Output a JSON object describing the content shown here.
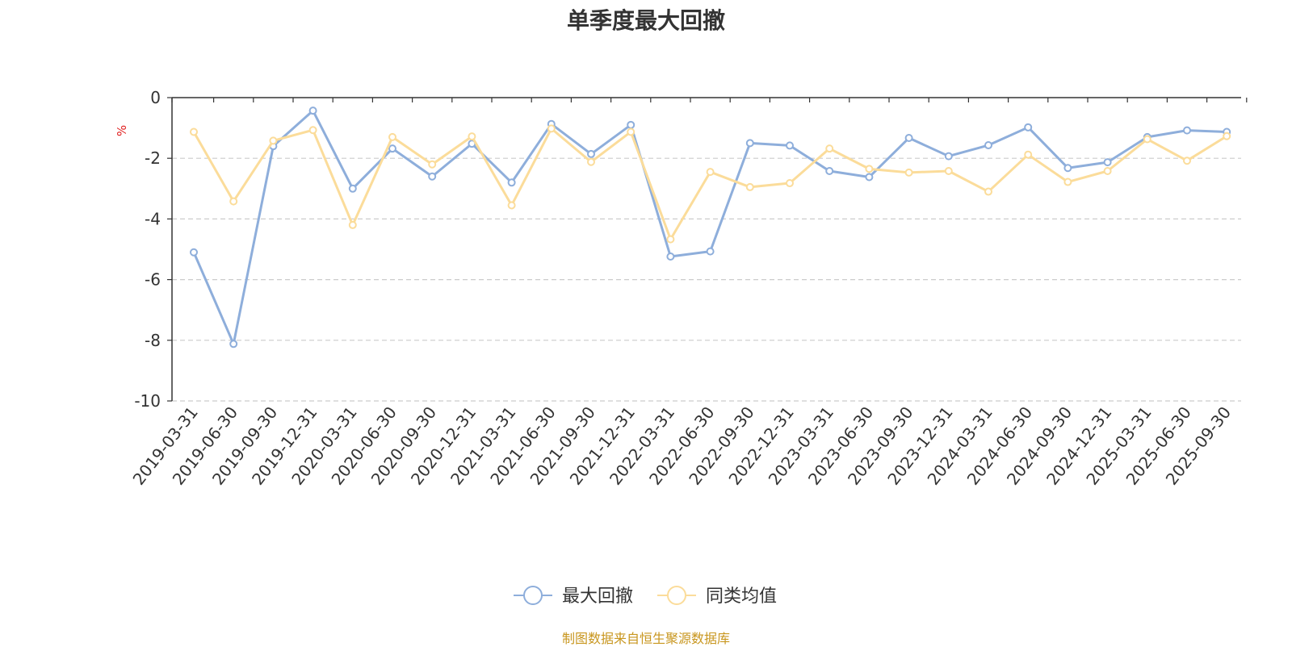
{
  "title": "单季度最大回撤",
  "source_note": "制图数据来自恒生聚源数据库",
  "chart_data": {
    "type": "line",
    "title": "单季度最大回撤",
    "ylabel": "%",
    "xlabel": "",
    "ylim": [
      -10,
      0
    ],
    "yticks": [
      0,
      -2,
      -4,
      -6,
      -8,
      -10
    ],
    "grid": true,
    "legend_position": "bottom",
    "categories": [
      "2019-03-31",
      "2019-06-30",
      "2019-09-30",
      "2019-12-31",
      "2020-03-31",
      "2020-06-30",
      "2020-09-30",
      "2020-12-31",
      "2021-03-31",
      "2021-06-30",
      "2021-09-30",
      "2021-12-31",
      "2022-03-31",
      "2022-06-30",
      "2022-09-30",
      "2022-12-31",
      "2023-03-31",
      "2023-06-30",
      "2023-09-30",
      "2023-12-31",
      "2024-03-31",
      "2024-06-30",
      "2024-09-30",
      "2024-12-31",
      "2025-03-31",
      "2025-06-30",
      "2025-09-30"
    ],
    "series": [
      {
        "name": "最大回撤",
        "color": "#8eaedb",
        "values": [
          -5.1,
          -8.12,
          -1.6,
          -0.43,
          -3.0,
          -1.68,
          -2.6,
          -1.52,
          -2.8,
          -0.87,
          -1.86,
          -0.9,
          -5.24,
          -5.07,
          -1.5,
          -1.58,
          -2.42,
          -2.62,
          -1.33,
          -1.93,
          -1.57,
          -0.98,
          -2.32,
          -2.13,
          -1.3,
          -1.08,
          -1.13
        ]
      },
      {
        "name": "同类均值",
        "color": "#fbdc9a",
        "values": [
          -1.13,
          -3.42,
          -1.42,
          -1.07,
          -4.2,
          -1.3,
          -2.2,
          -1.28,
          -3.55,
          -1.02,
          -2.12,
          -1.13,
          -4.67,
          -2.45,
          -2.95,
          -2.82,
          -1.68,
          -2.35,
          -2.47,
          -2.42,
          -3.1,
          -1.88,
          -2.78,
          -2.42,
          -1.37,
          -2.08,
          -1.27
        ]
      }
    ]
  }
}
